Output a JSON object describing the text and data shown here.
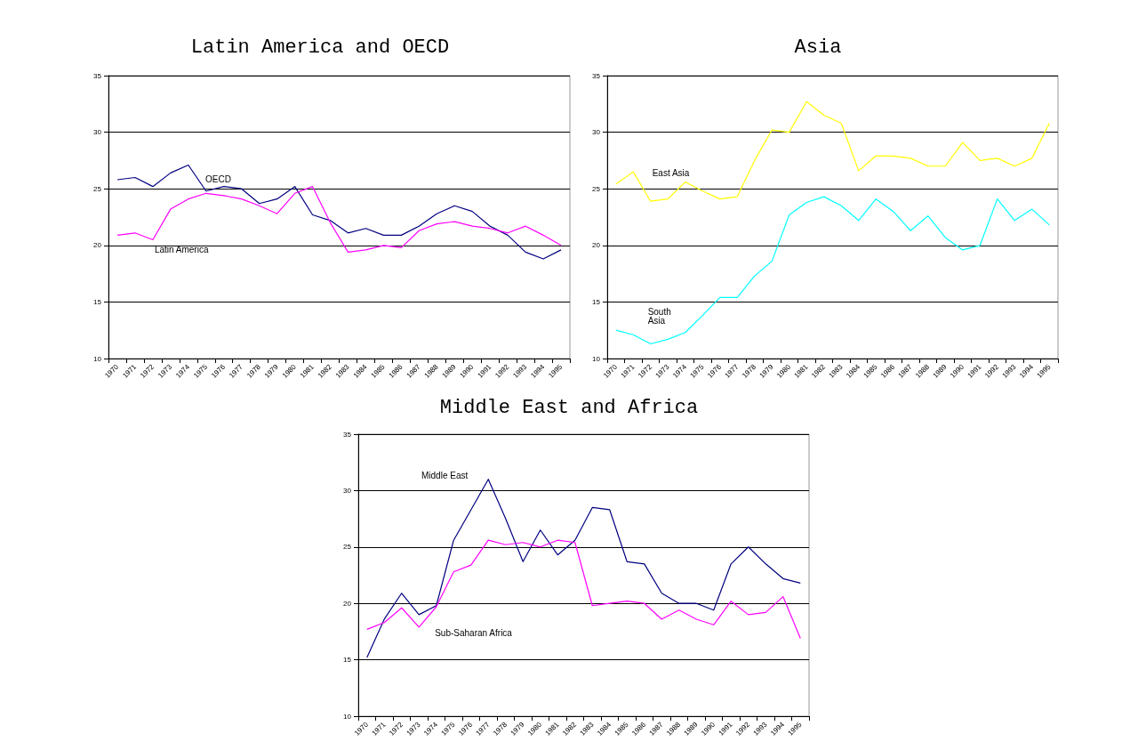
{
  "chart_data": [
    {
      "type": "line",
      "title": "Latin America and OECD",
      "categories": [
        "1970",
        "1971",
        "1972",
        "1973",
        "1974",
        "1975",
        "1976",
        "1977",
        "1978",
        "1979",
        "1980",
        "1981",
        "1982",
        "1983",
        "1984",
        "1985",
        "1986",
        "1987",
        "1988",
        "1989",
        "1990",
        "1991",
        "1992",
        "1993",
        "1994",
        "1995"
      ],
      "ylim": [
        10,
        35
      ],
      "yticks": [
        10,
        15,
        20,
        25,
        30,
        35
      ],
      "grid": "y",
      "legend": false,
      "series": [
        {
          "name": "OECD",
          "color": "#000080",
          "values": [
            25.8,
            26.0,
            25.2,
            26.4,
            27.1,
            24.8,
            25.2,
            25.0,
            23.7,
            24.1,
            25.2,
            22.7,
            22.2,
            21.1,
            21.5,
            20.9,
            20.9,
            21.7,
            22.8,
            23.5,
            23.0,
            21.7,
            20.9,
            19.4,
            18.8,
            19.6
          ]
        },
        {
          "name": "Latin America",
          "color": "#ff00ff",
          "values": [
            20.9,
            21.1,
            20.5,
            23.2,
            24.1,
            24.6,
            24.4,
            24.1,
            23.5,
            22.8,
            24.6,
            25.2,
            22.0,
            19.4,
            19.6,
            20.0,
            19.8,
            21.3,
            21.9,
            22.1,
            21.7,
            21.5,
            21.1,
            21.7,
            20.9,
            20.0
          ]
        }
      ]
    },
    {
      "type": "line",
      "title": "Asia",
      "categories": [
        "1970",
        "1971",
        "1972",
        "1973",
        "1974",
        "1975",
        "1976",
        "1977",
        "1978",
        "1979",
        "1980",
        "1981",
        "1982",
        "1983",
        "1984",
        "1985",
        "1986",
        "1987",
        "1988",
        "1989",
        "1990",
        "1991",
        "1992",
        "1993",
        "1994",
        "1995"
      ],
      "ylim": [
        10,
        35
      ],
      "yticks": [
        10,
        15,
        20,
        25,
        30,
        35
      ],
      "grid": "y",
      "legend": false,
      "series": [
        {
          "name": "East Asia",
          "color": "#ffff00",
          "values": [
            25.4,
            26.5,
            23.9,
            24.1,
            25.6,
            24.8,
            24.1,
            24.3,
            27.5,
            30.2,
            30.0,
            32.7,
            31.5,
            30.8,
            26.6,
            27.9,
            27.9,
            27.7,
            27.0,
            27.0,
            29.1,
            27.5,
            27.7,
            27.0,
            27.7,
            30.8
          ]
        },
        {
          "name": "South Asia",
          "color": "#00ffff",
          "values": [
            12.5,
            12.1,
            11.3,
            11.7,
            12.3,
            13.8,
            15.4,
            15.4,
            17.3,
            18.6,
            22.7,
            23.8,
            24.3,
            23.5,
            22.2,
            24.1,
            23.0,
            21.3,
            22.6,
            20.7,
            19.6,
            20.0,
            24.1,
            22.2,
            23.2,
            21.8
          ]
        }
      ]
    },
    {
      "type": "line",
      "title": "Middle East and Africa",
      "categories": [
        "1970",
        "1971",
        "1972",
        "1973",
        "1974",
        "1975",
        "1976",
        "1977",
        "1978",
        "1979",
        "1980",
        "1981",
        "1982",
        "1983",
        "1984",
        "1985",
        "1986",
        "1987",
        "1988",
        "1989",
        "1990",
        "1991",
        "1992",
        "1993",
        "1994",
        "1995"
      ],
      "ylim": [
        10,
        35
      ],
      "yticks": [
        10,
        15,
        20,
        25,
        30,
        35
      ],
      "grid": "y",
      "legend": false,
      "series": [
        {
          "name": "Middle East",
          "color": "#000080",
          "values": [
            15.2,
            18.6,
            20.9,
            19.0,
            19.8,
            25.6,
            28.3,
            31.0,
            27.5,
            23.7,
            26.5,
            24.3,
            25.6,
            28.5,
            28.3,
            23.7,
            23.5,
            20.9,
            20.0,
            20.0,
            19.4,
            23.5,
            25.0,
            23.5,
            22.2,
            21.8
          ]
        },
        {
          "name": "Sub-Saharan Africa",
          "color": "#ff00ff",
          "values": [
            17.7,
            18.3,
            19.6,
            17.9,
            19.7,
            22.8,
            23.4,
            25.6,
            25.2,
            25.4,
            25.0,
            25.6,
            25.4,
            19.8,
            20.0,
            20.2,
            20.0,
            18.6,
            19.4,
            18.6,
            18.1,
            20.2,
            19.0,
            19.2,
            20.6,
            16.9
          ]
        }
      ]
    }
  ]
}
